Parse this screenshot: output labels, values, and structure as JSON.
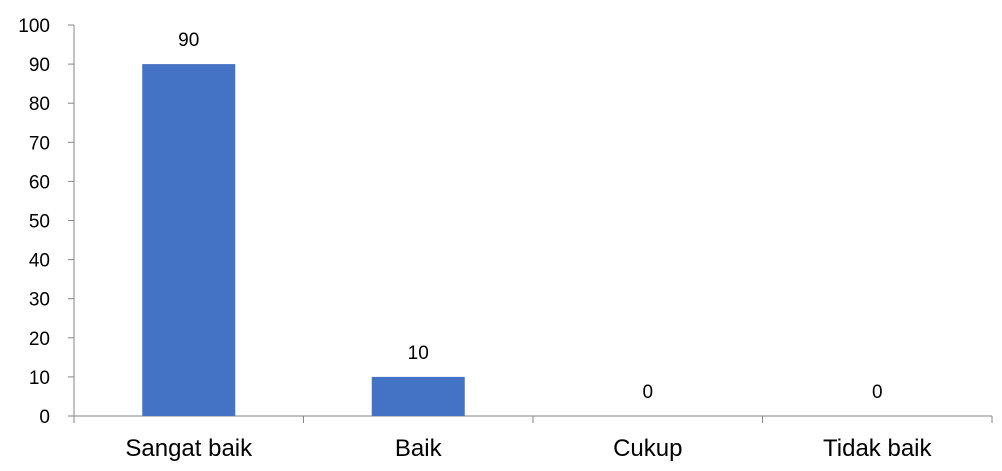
{
  "colors": {
    "bar": "#4472C4",
    "axis": "#868686",
    "text": "#000000",
    "background": "#FFFFFF"
  },
  "chart_data": {
    "type": "bar",
    "title": "",
    "xlabel": "",
    "ylabel": "",
    "categories": [
      "Sangat baik",
      "Baik",
      "Cukup",
      "Tidak baik"
    ],
    "values": [
      90,
      10,
      0,
      0
    ],
    "ylim": [
      0,
      100
    ],
    "yticks": [
      0,
      10,
      20,
      30,
      40,
      50,
      60,
      70,
      80,
      90,
      100
    ],
    "data_labels": [
      "90",
      "10",
      "0",
      "0"
    ],
    "grid": false,
    "legend": "none"
  }
}
